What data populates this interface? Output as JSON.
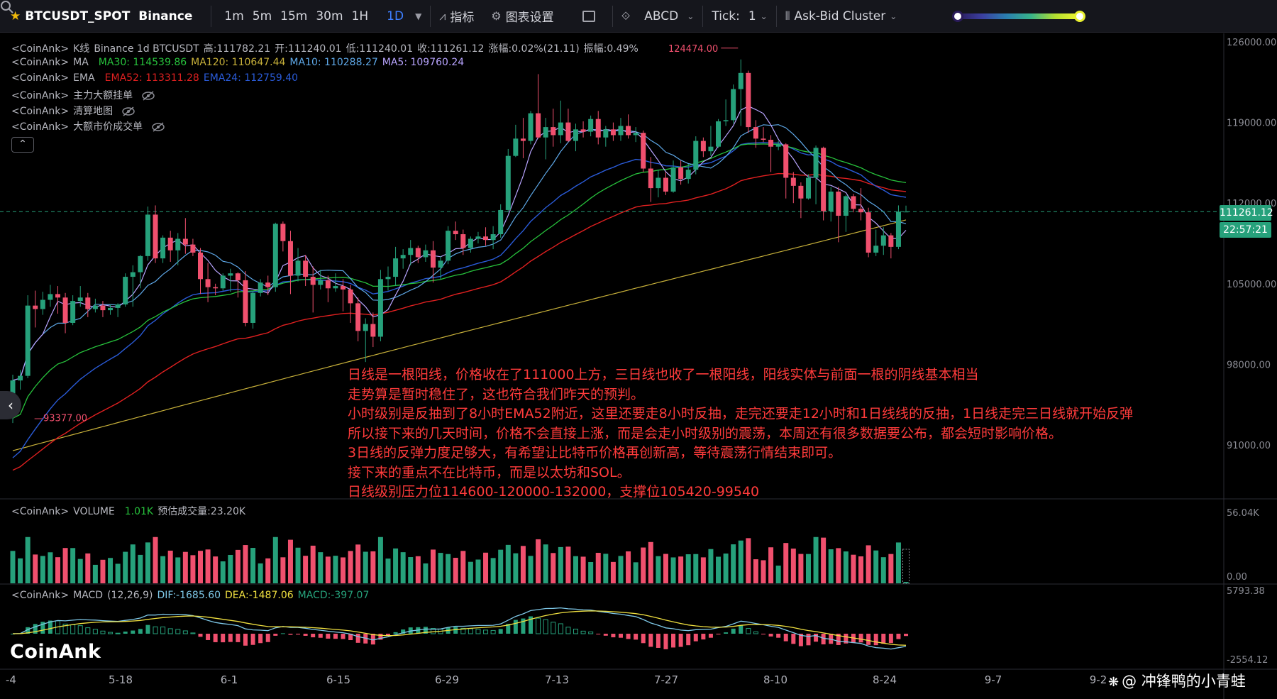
{
  "toolbar": {
    "symbol": "BTCUSDT_SPOT",
    "exchange": "Binance",
    "intervals": [
      "1m",
      "5m",
      "15m",
      "30m",
      "1H",
      "1D"
    ],
    "active_interval": "1D",
    "indicators_label": "指标",
    "chart_settings_label": "图表设置",
    "abcd_label": "ABCD",
    "tick_label": "Tick:",
    "tick_value": "1",
    "cluster_label": "Ask-Bid Cluster"
  },
  "legends": {
    "kline": {
      "prefix": "<CoinAnk>",
      "name": "K线",
      "info": "Binance 1d BTCUSDT",
      "high": "高:111782.21",
      "open": "开:111240.01",
      "low": "低:111240.01",
      "close": "收:111261.12",
      "change": "涨幅:0.02%(21.11)",
      "amp": "振幅:0.49%"
    },
    "ma": {
      "prefix": "<CoinAnk>",
      "name": "MA",
      "ma30": "MA30: 114539.86",
      "ma120": "MA120: 110647.44",
      "ma10": "MA10: 110288.27",
      "ma5": "MA5: 109760.24"
    },
    "ema": {
      "prefix": "<CoinAnk>",
      "name": "EMA",
      "ema52": "EMA52: 113311.28",
      "ema24": "EMA24: 112759.40"
    },
    "l4": {
      "prefix": "<CoinAnk>",
      "name": "主力大额挂单"
    },
    "l5": {
      "prefix": "<CoinAnk>",
      "name": "清算地图"
    },
    "l6": {
      "prefix": "<CoinAnk>",
      "name": "大额市价成交单"
    },
    "volume": {
      "prefix": "<CoinAnk>",
      "name": "VOLUME",
      "value": "1.01K",
      "est": "预估成交量:23.20K"
    },
    "macd": {
      "prefix": "<CoinAnk>",
      "name": "MACD",
      "params": "(12,26,9)",
      "dif": "DIF:-1685.60",
      "dea": "DEA:-1487.06",
      "macd": "MACD:-397.07"
    }
  },
  "price_tags": {
    "last": "111261.12",
    "countdown": "22:57:21"
  },
  "markers": {
    "high": "124474.00",
    "low": "93377.00"
  },
  "annotation": [
    "日线是一根阳线，价格收在了111000上方，三日线也收了一根阳线，阳线实体与前面一根的阴线基本相当",
    "走势算是暂时稳住了，这也符合我们昨天的预判。",
    "小时级别是反抽到了8小时EMA52附近，这里还要走8小时反抽，走完还要走12小时和1日线线的反抽，1日线走完三日线就开始反弹",
    "所以接下来的几天时间，价格不会直接上涨，而是会走小时级别的震荡，本周还有很多数据要公布，都会短时影响价格。",
    "3日线的反弹力度足够大，有希望让比特币价格再创新高，等待震荡行情结束即可。",
    "接下来的重点不在比特币，而是以太坊和SOL。",
    "日线级别压力位114600-120000-132000，支撑位105420-99540"
  ],
  "branding": {
    "logo": "CoinAnk",
    "watermark": "@ 冲锋鸭的小青蛙"
  },
  "colors": {
    "up": "#26a17b",
    "down": "#f0506e",
    "ma5": "#b8a4ff",
    "ma10": "#5ea8e8",
    "ma30": "#27c23c",
    "ma120": "#c8b13a",
    "ema52": "#e02020",
    "ema24": "#2a5bd8",
    "dif": "#7ec8e8",
    "dea": "#f0e040"
  },
  "chart_data": {
    "type": "candlestick",
    "title": "BTCUSDT Binance 1d",
    "price_axis": {
      "ticks": [
        "126000.00",
        "119000.00",
        "112000.00",
        "105000.00",
        "98000.00",
        "91000.00"
      ],
      "ylim": [
        88000,
        126000
      ]
    },
    "volume_axis": {
      "ticks": [
        "56.04K",
        "0.00"
      ]
    },
    "macd_axis": {
      "ticks": [
        "5793.38",
        "-2554.12"
      ]
    },
    "x_ticks": [
      "-4",
      "5-18",
      "6-1",
      "6-15",
      "6-29",
      "7-13",
      "7-27",
      "8-10",
      "8-24",
      "9-7",
      "9-2"
    ],
    "candles": [
      [
        93800,
        97100,
        92900,
        96600
      ],
      [
        96600,
        97500,
        95800,
        97000
      ],
      [
        97000,
        104000,
        96800,
        103100
      ],
      [
        103100,
        104400,
        101200,
        102800
      ],
      [
        102800,
        104300,
        102300,
        103600
      ],
      [
        103600,
        104900,
        103000,
        104100
      ],
      [
        104100,
        104800,
        102400,
        103800
      ],
      [
        103800,
        104200,
        100700,
        101600
      ],
      [
        101600,
        104000,
        101400,
        103500
      ],
      [
        103500,
        104800,
        103000,
        103800
      ],
      [
        103800,
        104200,
        102100,
        102800
      ],
      [
        102800,
        103700,
        102500,
        103100
      ],
      [
        103100,
        103500,
        102100,
        102700
      ],
      [
        102700,
        103200,
        102300,
        102900
      ],
      [
        102900,
        103300,
        102100,
        103200
      ],
      [
        103200,
        105900,
        103000,
        105600
      ],
      [
        105600,
        106600,
        103000,
        106000
      ],
      [
        106000,
        107500,
        104600,
        107400
      ],
      [
        107400,
        111700,
        107000,
        111000
      ],
      [
        111000,
        111800,
        106800,
        107200
      ],
      [
        107200,
        109200,
        106800,
        109000
      ],
      [
        109000,
        109600,
        106900,
        107900
      ],
      [
        107900,
        109400,
        106600,
        108900
      ],
      [
        108900,
        110700,
        107600,
        108400
      ],
      [
        108400,
        108900,
        107400,
        107700
      ],
      [
        107700,
        108100,
        104100,
        105400
      ],
      [
        105400,
        106800,
        103400,
        104700
      ],
      [
        104700,
        105000,
        104000,
        104600
      ],
      [
        104600,
        105900,
        104400,
        105700
      ],
      [
        105700,
        106300,
        104300,
        105900
      ],
      [
        105900,
        106000,
        103800,
        105300
      ],
      [
        105300,
        106100,
        101300,
        101600
      ],
      [
        101600,
        104400,
        101100,
        104200
      ],
      [
        104200,
        105400,
        103900,
        105100
      ],
      [
        105100,
        105700,
        104000,
        104700
      ],
      [
        104700,
        110300,
        104300,
        110200
      ],
      [
        110200,
        110400,
        107800,
        108700
      ],
      [
        108700,
        109600,
        104100,
        105700
      ],
      [
        105700,
        108100,
        105200,
        107000
      ],
      [
        107000,
        107500,
        104800,
        105600
      ],
      [
        105600,
        106500,
        102500,
        104900
      ],
      [
        104900,
        106200,
        104500,
        105300
      ],
      [
        105300,
        105700,
        103400,
        104600
      ],
      [
        104600,
        105900,
        104300,
        104800
      ],
      [
        104800,
        105400,
        102600,
        104500
      ],
      [
        104500,
        104900,
        101600,
        103300
      ],
      [
        103300,
        103800,
        100000,
        100900
      ],
      [
        100900,
        102000,
        98200,
        101500
      ],
      [
        101500,
        102500,
        99500,
        100400
      ],
      [
        100400,
        106200,
        100000,
        105400
      ],
      [
        105400,
        106500,
        104400,
        105600
      ],
      [
        105600,
        108200,
        104800,
        107200
      ],
      [
        107200,
        108000,
        106300,
        107500
      ],
      [
        107500,
        108800,
        106600,
        108100
      ],
      [
        108100,
        108300,
        106800,
        107300
      ],
      [
        107300,
        108400,
        106900,
        107900
      ],
      [
        107900,
        108700,
        105100,
        106400
      ],
      [
        106400,
        107400,
        105400,
        107000
      ],
      [
        107000,
        110000,
        106700,
        109600
      ],
      [
        109600,
        110400,
        108800,
        109300
      ],
      [
        109300,
        109700,
        107500,
        108100
      ],
      [
        108100,
        109100,
        107700,
        108900
      ],
      [
        108900,
        109500,
        108500,
        109100
      ],
      [
        109100,
        109900,
        108300,
        108800
      ],
      [
        108800,
        110000,
        108000,
        109300
      ],
      [
        109300,
        111900,
        109000,
        111400
      ],
      [
        111400,
        116700,
        111200,
        116100
      ],
      [
        116100,
        118800,
        116000,
        117600
      ],
      [
        117600,
        119400,
        115900,
        117400
      ],
      [
        117400,
        120000,
        117100,
        119800
      ],
      [
        119800,
        123200,
        117600,
        117700
      ],
      [
        117700,
        119400,
        115800,
        118600
      ],
      [
        118600,
        120200,
        116900,
        117900
      ],
      [
        117900,
        120900,
        117200,
        119000
      ],
      [
        119000,
        120200,
        117300,
        117400
      ],
      [
        117400,
        118900,
        116500,
        118400
      ],
      [
        118400,
        119100,
        117700,
        118200
      ],
      [
        118200,
        119600,
        117800,
        119300
      ],
      [
        119300,
        120000,
        117100,
        117700
      ],
      [
        117700,
        118700,
        116900,
        118400
      ],
      [
        118400,
        119000,
        117400,
        117900
      ],
      [
        117900,
        119400,
        117400,
        118700
      ],
      [
        118700,
        119700,
        117600,
        117900
      ],
      [
        117900,
        118600,
        117300,
        118100
      ],
      [
        118100,
        118300,
        114700,
        115000
      ],
      [
        115000,
        116000,
        112100,
        113300
      ],
      [
        113300,
        114900,
        112500,
        114200
      ],
      [
        114200,
        114700,
        112700,
        113000
      ],
      [
        113000,
        115700,
        112900,
        115100
      ],
      [
        115100,
        115700,
        113600,
        114100
      ],
      [
        114100,
        115400,
        113700,
        114900
      ],
      [
        114900,
        117800,
        114500,
        117400
      ],
      [
        117400,
        117700,
        116000,
        116500
      ],
      [
        116500,
        118700,
        116100,
        116900
      ],
      [
        116900,
        119300,
        116800,
        119100
      ],
      [
        119100,
        121000,
        118700,
        119200
      ],
      [
        119200,
        122300,
        118900,
        121900
      ],
      [
        121900,
        124474,
        118700,
        123300
      ],
      [
        123300,
        123500,
        118100,
        118600
      ],
      [
        118600,
        119200,
        116800,
        117600
      ],
      [
        117600,
        118600,
        117300,
        117500
      ],
      [
        117500,
        117900,
        114700,
        116900
      ],
      [
        116900,
        117400,
        116600,
        117100
      ],
      [
        117100,
        117200,
        112400,
        114200
      ],
      [
        114200,
        114700,
        112000,
        113500
      ],
      [
        113500,
        113800,
        110700,
        112400
      ],
      [
        112400,
        114500,
        112300,
        114200
      ],
      [
        114200,
        117000,
        111900,
        116800
      ],
      [
        116800,
        116900,
        110500,
        111300
      ],
      [
        111300,
        113400,
        110400,
        113000
      ],
      [
        113000,
        113400,
        108600,
        110900
      ],
      [
        110900,
        112700,
        109500,
        112600
      ],
      [
        112600,
        112800,
        111200,
        111500
      ],
      [
        111500,
        113300,
        110500,
        111200
      ],
      [
        111200,
        111600,
        107300,
        107700
      ],
      [
        107700,
        109700,
        107400,
        108300
      ],
      [
        108300,
        109900,
        107500,
        109200
      ],
      [
        109200,
        109400,
        107200,
        108200
      ],
      [
        108200,
        111800,
        108000,
        111250
      ],
      [
        111240,
        111782,
        111240,
        111261
      ]
    ]
  }
}
